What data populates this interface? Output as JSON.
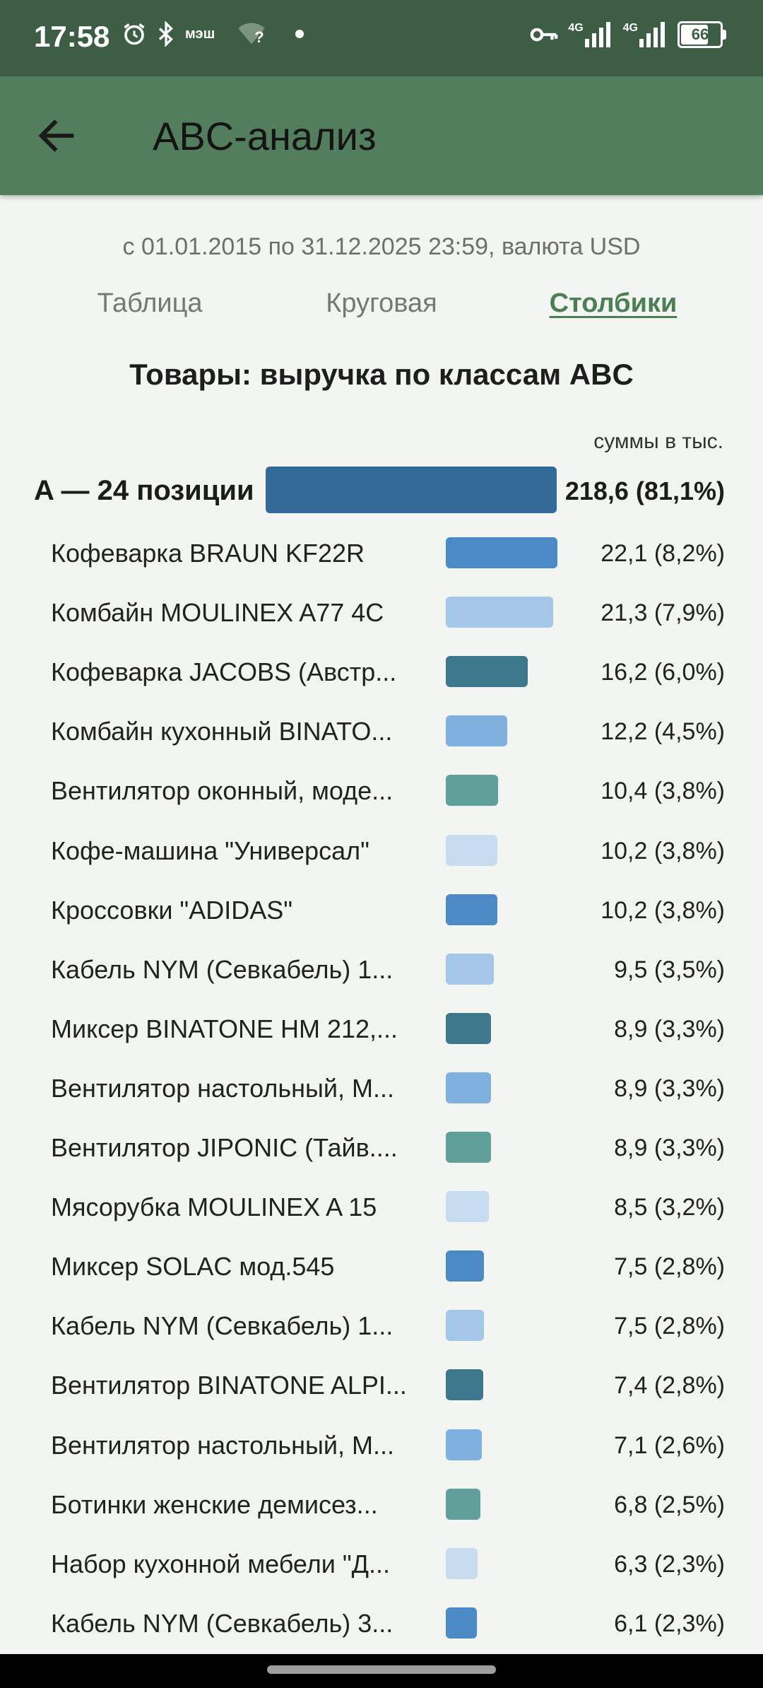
{
  "status_bar": {
    "time": "17:58",
    "carrier_text": "мэш",
    "wifi_mark": "?",
    "net_label_1": "4G",
    "net_label_2": "4G",
    "battery": "66"
  },
  "app_bar": {
    "title": "ABC-анализ"
  },
  "period": "с 01.01.2015 по 31.12.2025 23:59, валюта USD",
  "tabs": [
    {
      "label": "Таблица",
      "active": false
    },
    {
      "label": "Круговая",
      "active": false
    },
    {
      "label": "Столбики",
      "active": true
    }
  ],
  "chart_title": "Товары: выручка по классам ABC",
  "units_note": "суммы в тыс.",
  "colors": {
    "class_a": "#336a98",
    "palette": [
      "#4b8ac4",
      "#a4c7e7",
      "#3d778c",
      "#80b1de",
      "#5fa09a",
      "#c8dcef"
    ]
  },
  "chart_data": {
    "type": "bar",
    "class_group": {
      "label": "A — 24 позиции",
      "value": 218.6,
      "value_label": "218,6 (81,1%)"
    },
    "items": [
      {
        "name": "Кофеварка BRAUN KF22R",
        "value": 22.1,
        "label": "22,1 (8,2%)"
      },
      {
        "name": "Комбайн MOULINEX  A77 4C",
        "value": 21.3,
        "label": "21,3 (7,9%)"
      },
      {
        "name": "Кофеварка JACOBS (Австр...",
        "value": 16.2,
        "label": "16,2 (6,0%)"
      },
      {
        "name": "Комбайн кухонный BINATO...",
        "value": 12.2,
        "label": "12,2 (4,5%)"
      },
      {
        "name": "Вентилятор оконный, моде...",
        "value": 10.4,
        "label": "10,4 (3,8%)"
      },
      {
        "name": "Кофе-машина \"Универсал\"",
        "value": 10.2,
        "label": "10,2 (3,8%)"
      },
      {
        "name": "Кроссовки \"ADIDAS\"",
        "value": 10.2,
        "label": "10,2 (3,8%)"
      },
      {
        "name": "Кабель NYM (Севкабель) 1...",
        "value": 9.5,
        "label": "9,5 (3,5%)"
      },
      {
        "name": "Миксер BINATONE HM 212,...",
        "value": 8.9,
        "label": "8,9 (3,3%)"
      },
      {
        "name": "Вентилятор настольный, М...",
        "value": 8.9,
        "label": "8,9 (3,3%)"
      },
      {
        "name": "Вентилятор JIPONIC (Тайв....",
        "value": 8.9,
        "label": "8,9 (3,3%)"
      },
      {
        "name": "Мясорубка MOULINEX  A 15",
        "value": 8.5,
        "label": "8,5 (3,2%)"
      },
      {
        "name": "Миксер SOLAC мод.545",
        "value": 7.5,
        "label": "7,5 (2,8%)"
      },
      {
        "name": "Кабель NYM (Севкабель) 1...",
        "value": 7.5,
        "label": "7,5 (2,8%)"
      },
      {
        "name": "Вентилятор BINATONE ALPI...",
        "value": 7.4,
        "label": "7,4 (2,8%)"
      },
      {
        "name": "Вентилятор настольный, М...",
        "value": 7.1,
        "label": "7,1 (2,6%)"
      },
      {
        "name": "Ботинки женские демисез...",
        "value": 6.8,
        "label": "6,8 (2,5%)"
      },
      {
        "name": "Набор кухонной мебели \"Д...",
        "value": 6.3,
        "label": "6,3 (2,3%)"
      },
      {
        "name": "Кабель NYM (Севкабель) 3...",
        "value": 6.1,
        "label": "6,1 (2,3%)"
      }
    ]
  }
}
